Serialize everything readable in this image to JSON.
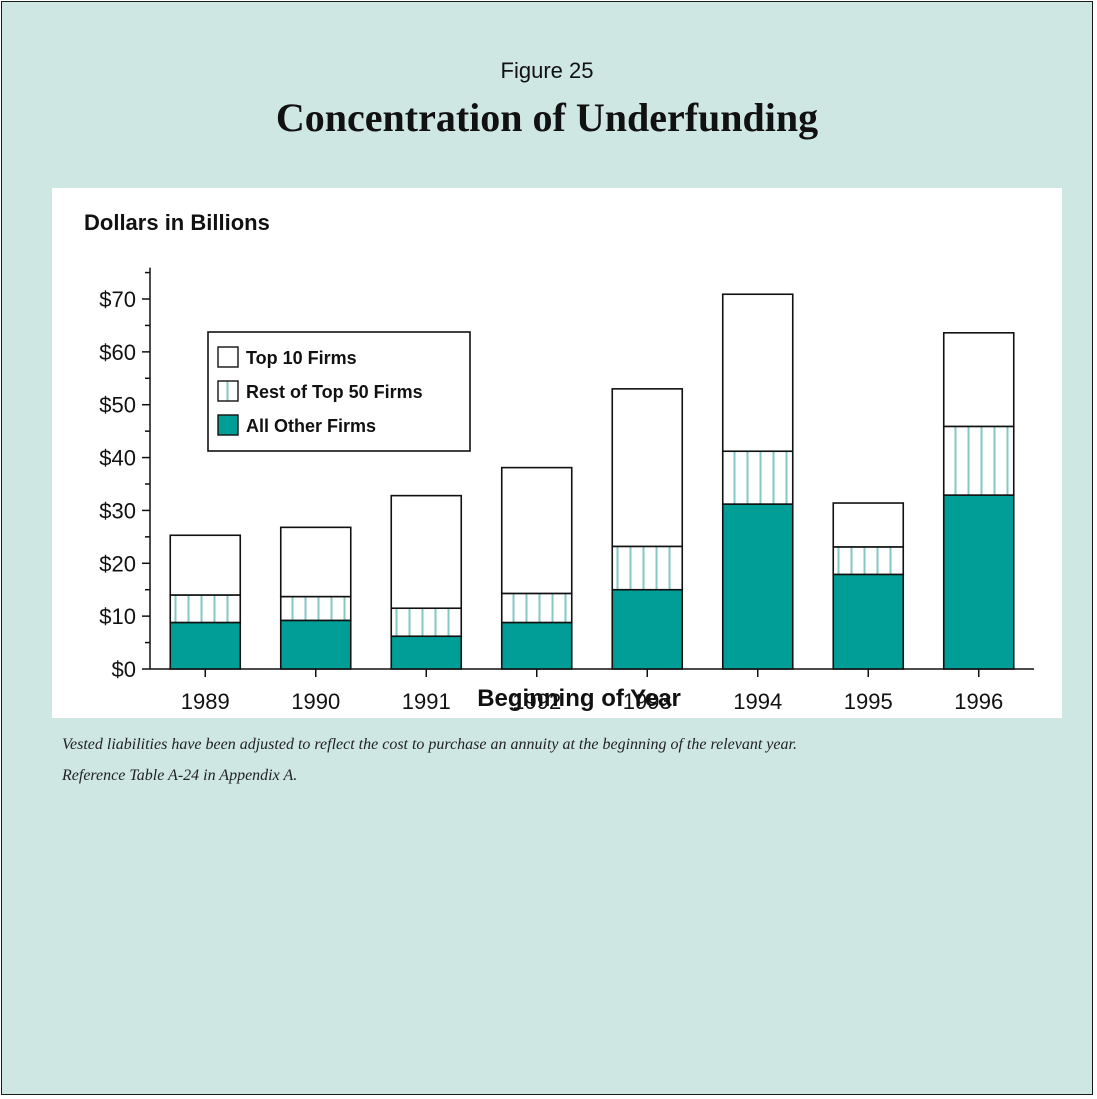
{
  "figure_label": "Figure 25",
  "title": "Concentration of Underfunding",
  "notes": [
    "Vested liabilities have been adjusted to reflect the cost to purchase an annuity at the beginning of the relevant year.",
    "Reference Table A-24 in Appendix A."
  ],
  "colors": {
    "background": "#cfe7e3",
    "plot_background": "#ffffff",
    "all_other": "#009e96",
    "rest_top50_hatch": "#7fcac4",
    "outline": "#111111"
  },
  "chart_data": {
    "type": "bar",
    "stacked": true,
    "ylabel": "Dollars in Billions",
    "xlabel": "Beginning of Year",
    "ylim": [
      0,
      75
    ],
    "yticks": [
      0,
      10,
      20,
      30,
      40,
      50,
      60,
      70
    ],
    "ytick_labels": [
      "$0",
      "$10",
      "$20",
      "$30",
      "$40",
      "$50",
      "$60",
      "$70"
    ],
    "categories": [
      "1989",
      "1990",
      "1991",
      "1992",
      "1993",
      "1994",
      "1995",
      "1996"
    ],
    "series": [
      {
        "name": "All Other Firms",
        "values": [
          8.8,
          9.2,
          6.2,
          8.8,
          15.0,
          31.2,
          17.9,
          32.9
        ]
      },
      {
        "name": "Rest of Top 50 Firms",
        "values": [
          5.2,
          4.5,
          5.3,
          5.5,
          8.2,
          10.0,
          5.2,
          13.0
        ]
      },
      {
        "name": "Top 10 Firms",
        "values": [
          11.3,
          13.1,
          21.3,
          23.8,
          29.8,
          29.7,
          8.3,
          17.7
        ]
      }
    ],
    "legend_position": "upper-left",
    "legend_order": [
      "Top 10 Firms",
      "Rest of Top 50 Firms",
      "All Other Firms"
    ],
    "grid": false
  }
}
